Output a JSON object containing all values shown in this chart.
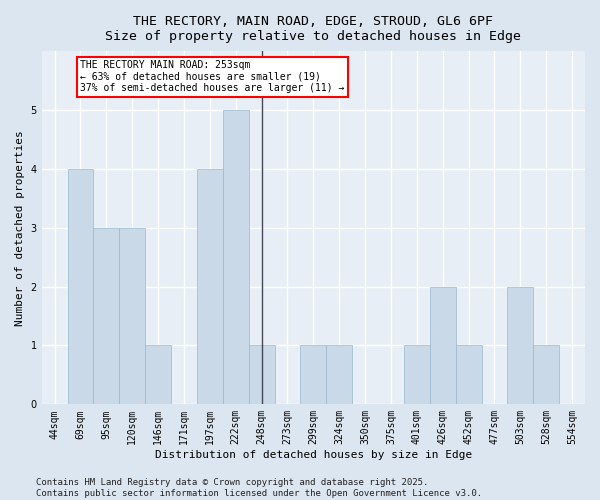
{
  "title_line1": "THE RECTORY, MAIN ROAD, EDGE, STROUD, GL6 6PF",
  "title_line2": "Size of property relative to detached houses in Edge",
  "xlabel": "Distribution of detached houses by size in Edge",
  "ylabel": "Number of detached properties",
  "categories": [
    "44sqm",
    "69sqm",
    "95sqm",
    "120sqm",
    "146sqm",
    "171sqm",
    "197sqm",
    "222sqm",
    "248sqm",
    "273sqm",
    "299sqm",
    "324sqm",
    "350sqm",
    "375sqm",
    "401sqm",
    "426sqm",
    "452sqm",
    "477sqm",
    "503sqm",
    "528sqm",
    "554sqm"
  ],
  "values": [
    0,
    4,
    3,
    3,
    1,
    0,
    4,
    5,
    1,
    0,
    1,
    1,
    0,
    0,
    1,
    2,
    1,
    0,
    2,
    1,
    0
  ],
  "bar_color": "#c9d9e8",
  "bar_edge_color": "#9ab8d0",
  "highlight_index": 8,
  "highlight_line_color": "#444455",
  "annotation_text": "THE RECTORY MAIN ROAD: 253sqm\n← 63% of detached houses are smaller (19)\n37% of semi-detached houses are larger (11) →",
  "annotation_box_color": "white",
  "annotation_box_edge_color": "red",
  "ylim": [
    0,
    6
  ],
  "yticks": [
    0,
    1,
    2,
    3,
    4,
    5,
    6
  ],
  "background_color": "#dce6f0",
  "plot_bg_color": "#e8eef5",
  "grid_color": "white",
  "footer_text": "Contains HM Land Registry data © Crown copyright and database right 2025.\nContains public sector information licensed under the Open Government Licence v3.0.",
  "title_fontsize": 9.5,
  "axis_label_fontsize": 8,
  "tick_fontsize": 7,
  "annotation_fontsize": 7,
  "footer_fontsize": 6.5
}
